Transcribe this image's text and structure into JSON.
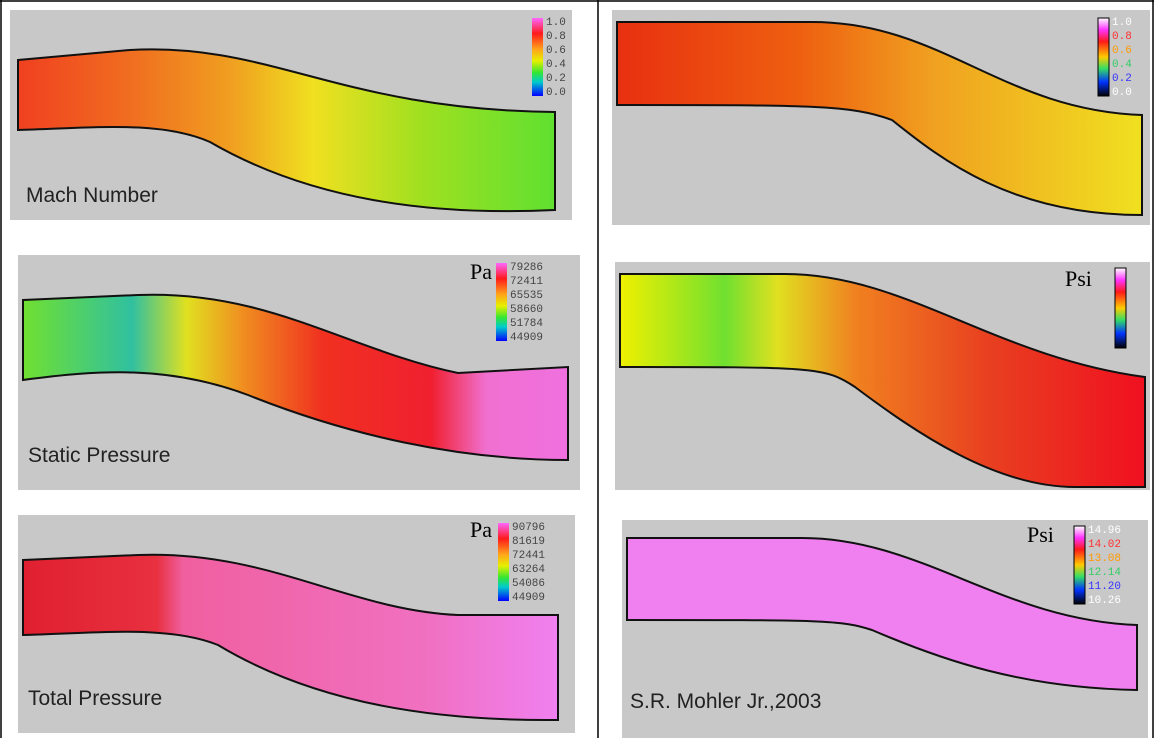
{
  "left_panels": [
    {
      "label": "Mach Number",
      "colorbar": [
        "1.0",
        "0.8",
        "0.6",
        "0.4",
        "0.2",
        "0.0"
      ]
    },
    {
      "label": "Static Pressure",
      "unit": "Pa",
      "colorbar": [
        "79286",
        "72411",
        "65535",
        "58660",
        "51784",
        "44909"
      ]
    },
    {
      "label": "Total Pressure",
      "unit": "Pa",
      "colorbar": [
        "90796",
        "81619",
        "72441",
        "63264",
        "54086",
        "44909"
      ]
    }
  ],
  "right_panels": [
    {
      "colorbar": [
        "1.0",
        "0.8",
        "0.6",
        "0.4",
        "0.2",
        "0.0"
      ]
    },
    {
      "unit": "Psi"
    },
    {
      "unit": "Psi",
      "colorbar": [
        "14.96",
        "14.02",
        "13.08",
        "12.14",
        "11.20",
        "10.26"
      ],
      "label": "S.R. Mohler Jr.,2003"
    }
  ]
}
